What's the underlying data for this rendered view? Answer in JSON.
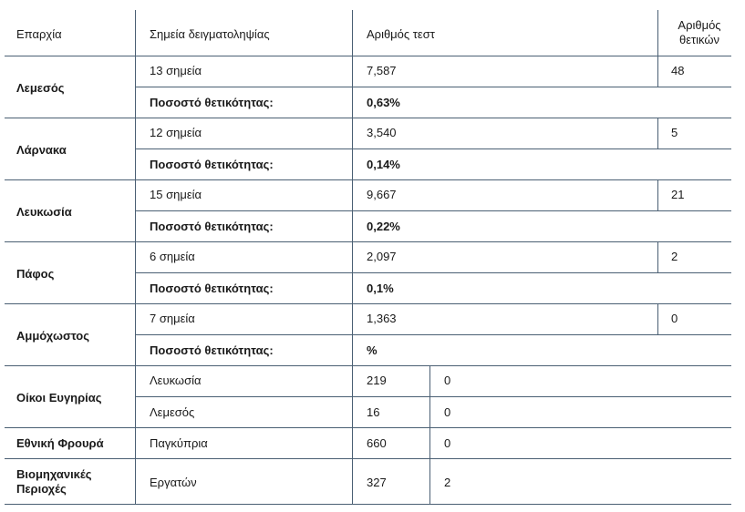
{
  "header": {
    "district": "Επαρχία",
    "points": "Σημεία δειγματοληψίας",
    "tests": "Αριθμός τεστ",
    "positives": "Αριθμός θετικών"
  },
  "positivity_label": "Ποσοστό θετικότητας:",
  "rows": [
    {
      "district": "Λεμεσός",
      "points": "13 σημεία",
      "tests": "7,587",
      "positives": "48",
      "rate": "0,63%"
    },
    {
      "district": "Λάρνακα",
      "points": "12 σημεία",
      "tests": "3,540",
      "positives": "5",
      "rate": "0,14%"
    },
    {
      "district": "Λευκωσία",
      "points": "15 σημεία",
      "tests": "9,667",
      "positives": "21",
      "rate": "0,22%"
    },
    {
      "district": "Πάφος",
      "points": "6 σημεία",
      "tests": "2,097",
      "positives": "2",
      "rate": "0,1%"
    },
    {
      "district": "Αμμόχωστος",
      "points": "7 σημεία",
      "tests": "1,363",
      "positives": "0",
      "rate": "%"
    }
  ],
  "care_homes": {
    "label": "Οίκοι Ευγηρίας",
    "rows": [
      {
        "place": "Λευκωσία",
        "tests": "219",
        "positives": "0"
      },
      {
        "place": "Λεμεσός",
        "tests": "16",
        "positives": "0"
      }
    ]
  },
  "national_guard": {
    "label": "Εθνική Φρουρά",
    "place": "Παγκύπρια",
    "tests": "660",
    "positives": "0"
  },
  "industrial": {
    "label": "Βιομηχανικές Περιοχές",
    "place": "Εργατών",
    "tests": "327",
    "positives": "2"
  }
}
